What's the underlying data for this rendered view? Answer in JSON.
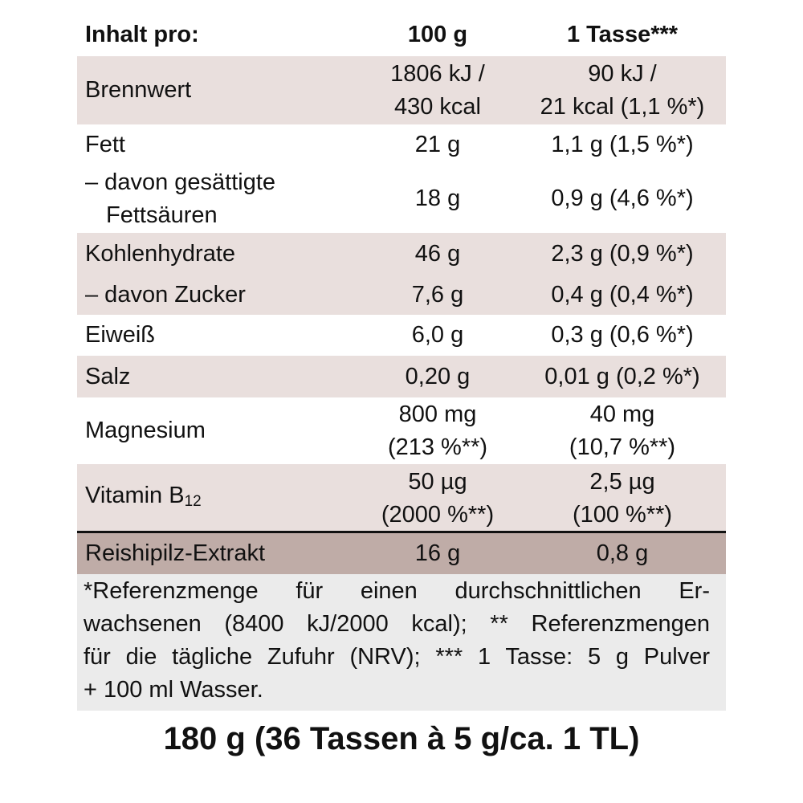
{
  "header": [
    "Inhalt pro:",
    "100 g",
    "1 Tasse***"
  ],
  "groups": [
    {
      "rows": [
        [
          [
            "Brennwert"
          ],
          [
            "1806 kJ /",
            "430 kcal"
          ],
          [
            "90 kJ /",
            "21 kcal (1,1 %*)"
          ]
        ]
      ]
    },
    {
      "rows": [
        [
          [
            "Fett"
          ],
          [
            "21 g"
          ],
          [
            "1,1 g (1,5 %*)"
          ]
        ],
        [
          [
            "– davon gesättigte",
            "Fettsäuren"
          ],
          [
            "18 g"
          ],
          [
            "0,9 g (4,6 %*)"
          ]
        ]
      ]
    },
    {
      "rows": [
        [
          [
            "Kohlenhydrate"
          ],
          [
            "46 g"
          ],
          [
            "2,3 g (0,9 %*)"
          ]
        ],
        [
          [
            "– davon Zucker"
          ],
          [
            "7,6 g"
          ],
          [
            "0,4 g (0,4 %*)"
          ]
        ]
      ]
    },
    {
      "rows": [
        [
          [
            "Eiweiß"
          ],
          [
            "6,0 g"
          ],
          [
            "0,3 g (0,6 %*)"
          ]
        ]
      ]
    },
    {
      "rows": [
        [
          [
            "Salz"
          ],
          [
            "0,20 g"
          ],
          [
            "0,01 g (0,2 %*)"
          ]
        ]
      ]
    },
    {
      "rows": [
        [
          [
            "Magnesium"
          ],
          [
            "800 mg",
            "(213 %**)"
          ],
          [
            "40 mg",
            "(10,7 %**)"
          ]
        ]
      ]
    },
    {
      "rows": [
        [
          [
            {
              "text": "Vitamin B",
              "sub": "12"
            }
          ],
          [
            "50 µg",
            "(2000 %**)"
          ],
          [
            "2,5 µg",
            "(100 %**)"
          ]
        ]
      ]
    },
    {
      "rows": [
        [
          [
            "Reishipilz-Extrakt"
          ],
          [
            "16 g"
          ],
          [
            "0,8 g"
          ]
        ]
      ]
    }
  ],
  "footnote": [
    "*Referenzmenge für einen durchschnittlichen Er-",
    "wachsenen (8400 kJ/2000 kcal); ** Referenzmengen",
    "für die tägliche Zufuhr (NRV); *** 1 Tasse: 5 g Pulver",
    "+ 100 ml Wasser."
  ],
  "package": "180 g (36 Tassen à 5 g/ca. 1 TL)"
}
